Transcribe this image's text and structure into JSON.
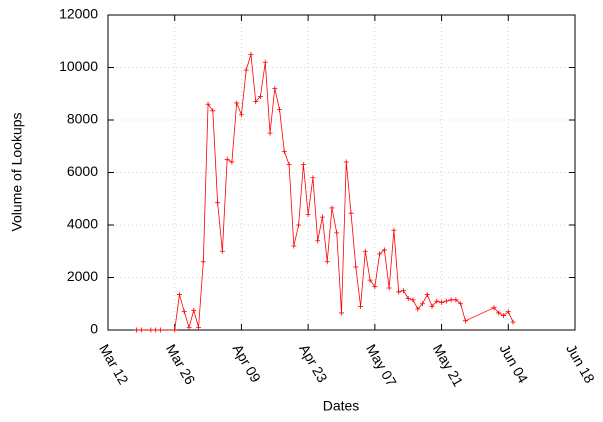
{
  "chart_data": {
    "type": "line",
    "xlabel": "Dates",
    "ylabel": "Volume of Lookups",
    "x": [
      "Mar 18",
      "Mar 19",
      "Mar 21",
      "Mar 22",
      "Mar 23",
      "Mar 26",
      "Mar 27",
      "Mar 28",
      "Mar 29",
      "Mar 30",
      "Mar 31",
      "Apr 1",
      "Apr 2",
      "Apr 3",
      "Apr 4",
      "Apr 5",
      "Apr 6",
      "Apr 7",
      "Apr 8",
      "Apr 9",
      "Apr 10",
      "Apr 11",
      "Apr 12",
      "Apr 13",
      "Apr 14",
      "Apr 15",
      "Apr 16",
      "Apr 17",
      "Apr 18",
      "Apr 19",
      "Apr 20",
      "Apr 21",
      "Apr 22",
      "Apr 23",
      "Apr 24",
      "Apr 25",
      "Apr 26",
      "Apr 27",
      "Apr 28",
      "Apr 29",
      "Apr 30",
      "May 1",
      "May 2",
      "May 3",
      "May 4",
      "May 5",
      "May 6",
      "May 7",
      "May 8",
      "May 9",
      "May 10",
      "May 11",
      "May 12",
      "May 13",
      "May 14",
      "May 15",
      "May 16",
      "May 17",
      "May 18",
      "May 19",
      "May 20",
      "May 21",
      "May 22",
      "May 23",
      "May 24",
      "May 25",
      "May 26",
      "Jun 1",
      "Jun 2",
      "Jun 3",
      "Jun 4",
      "Jun 5"
    ],
    "values": [
      0,
      0,
      0,
      0,
      0,
      0,
      1350,
      700,
      100,
      750,
      100,
      2600,
      8600,
      8350,
      4850,
      3000,
      6500,
      6400,
      8650,
      8200,
      9900,
      10500,
      8700,
      8900,
      10200,
      7500,
      9200,
      8400,
      6800,
      6300,
      3200,
      4000,
      6300,
      4400,
      5800,
      3400,
      4300,
      2600,
      4650,
      3700,
      650,
      6400,
      4450,
      2400,
      900,
      3000,
      1900,
      1650,
      2900,
      3050,
      1600,
      3800,
      1450,
      1500,
      1200,
      1150,
      800,
      1000,
      1350,
      900,
      1100,
      1050,
      1100,
      1150,
      1150,
      1000,
      350,
      850,
      650,
      550,
      700,
      300
    ],
    "color": "#ff0000",
    "xlim": [
      "Mar 12",
      "Jun 18"
    ],
    "xticks": [
      "Mar 12",
      "Mar 26",
      "Apr 09",
      "Apr 23",
      "May 07",
      "May 21",
      "Jun 04",
      "Jun 18"
    ],
    "ylim": [
      0,
      12000
    ],
    "yticks": [
      0,
      2000,
      4000,
      6000,
      8000,
      10000,
      12000
    ],
    "grid": true
  }
}
